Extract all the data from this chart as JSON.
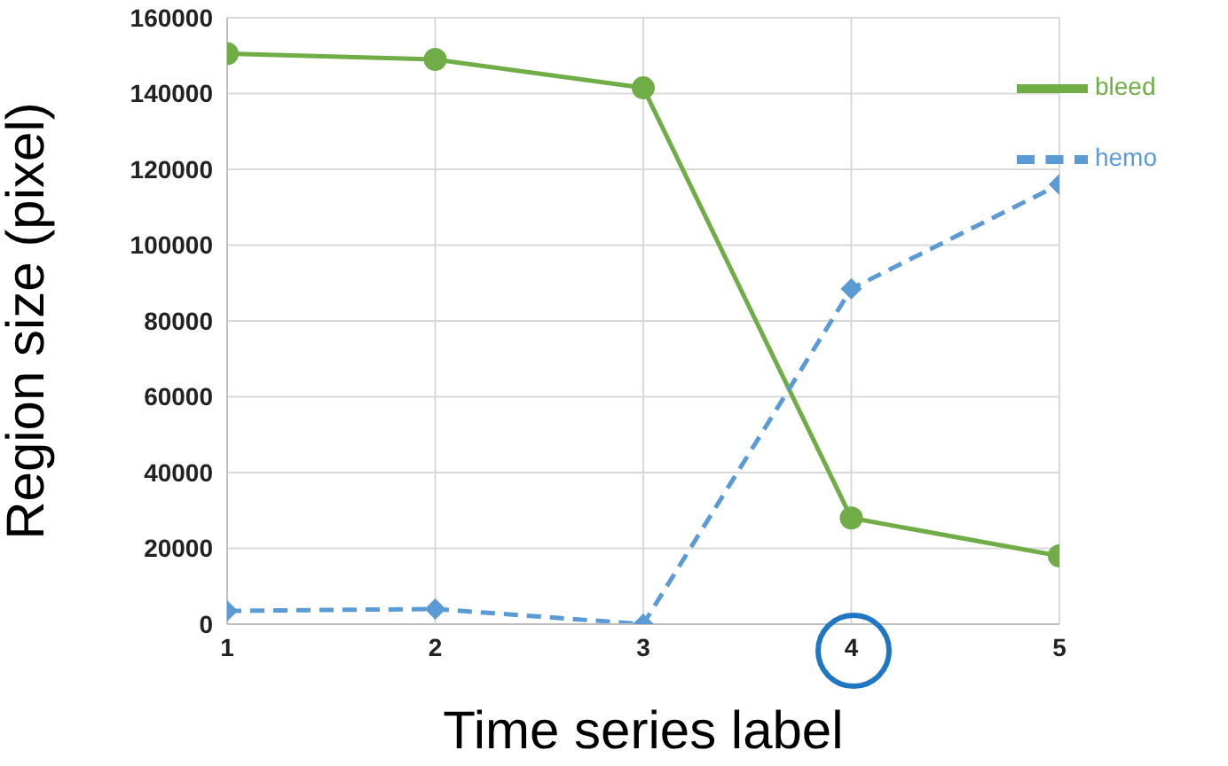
{
  "chart_data": {
    "type": "line",
    "xlabel": "Time series label",
    "ylabel": "Region size (pixel)",
    "x": [
      1,
      2,
      3,
      4,
      5
    ],
    "xlim": [
      1,
      5
    ],
    "xticks": [
      1,
      2,
      3,
      4,
      5
    ],
    "ylim": [
      0,
      160000
    ],
    "yticks": [
      0,
      20000,
      40000,
      60000,
      80000,
      100000,
      120000,
      140000,
      160000
    ],
    "series": [
      {
        "name": "bleed",
        "color": "#70ad47",
        "marker": "circle",
        "line_style": "solid",
        "values": [
          150500,
          149000,
          141500,
          28000,
          18000
        ]
      },
      {
        "name": "hemo",
        "color": "#5b9bd5",
        "marker": "diamond",
        "line_style": "dashed",
        "values": [
          3500,
          4000,
          0,
          88500,
          116000
        ]
      }
    ],
    "grid": true,
    "legend": "top right"
  }
}
